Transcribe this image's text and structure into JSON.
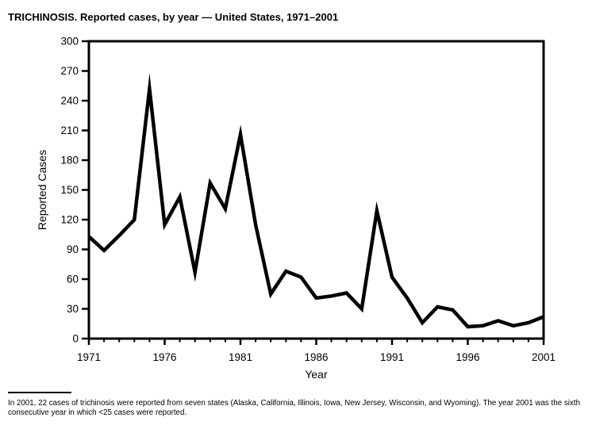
{
  "title": "TRICHINOSIS. Reported cases, by year — United States, 1971–2001",
  "footnote": "In 2001, 22 cases of trichinosis were reported from seven states (Alaska, California, Illinois, Iowa, New Jersey, Wisconsin, and Wyoming). The year 2001 was the sixth consecutive year in which <25 cases were reported.",
  "colors": {
    "line": "#000000",
    "frame": "#000000",
    "text": "#000000",
    "background": "#ffffff"
  },
  "chart_data": {
    "type": "line",
    "title": "TRICHINOSIS. Reported cases, by year — United States, 1971–2001",
    "xlabel": "Year",
    "ylabel": "Reported Cases",
    "x": [
      1971,
      1972,
      1973,
      1974,
      1975,
      1976,
      1977,
      1978,
      1979,
      1980,
      1981,
      1982,
      1983,
      1984,
      1985,
      1986,
      1987,
      1988,
      1989,
      1990,
      1991,
      1992,
      1993,
      1994,
      1995,
      1996,
      1997,
      1998,
      1999,
      2000,
      2001
    ],
    "values": [
      103,
      89,
      104,
      120,
      252,
      115,
      143,
      67,
      157,
      131,
      206,
      115,
      45,
      68,
      62,
      41,
      43,
      46,
      30,
      129,
      62,
      41,
      16,
      32,
      29,
      12,
      13,
      18,
      13,
      16,
      22
    ],
    "ylim": [
      0,
      300
    ],
    "y_tick_interval": 30,
    "x_major_ticks": [
      1971,
      1976,
      1981,
      1986,
      1991,
      1996,
      2001
    ],
    "x_minor_tick_interval": 1,
    "grid": false,
    "legend": "none",
    "frame": "box"
  }
}
